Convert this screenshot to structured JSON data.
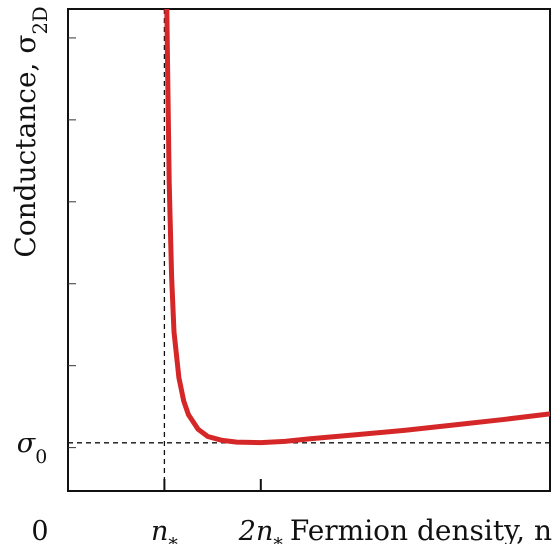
{
  "chart_data": {
    "type": "line",
    "title": "",
    "xlabel": "Fermion density, n",
    "ylabel": "Conductance, σ",
    "ylabel_subscript": "2D",
    "xlim": [
      0,
      10
    ],
    "ylim": [
      0,
      10
    ],
    "reference_lines": {
      "vertical_x": 2,
      "vertical_label": "n",
      "vertical_label_subscript": "*",
      "horizontal_y": 1,
      "horizontal_label": "σ",
      "horizontal_label_subscript": "0"
    },
    "x_ticks": [
      {
        "value": 0,
        "label": "0"
      },
      {
        "value": 2,
        "label": "n",
        "subscript": "*"
      },
      {
        "value": 4,
        "label": "2n",
        "subscript": "*"
      }
    ],
    "series": [
      {
        "x": [
          2.05,
          2.1,
          2.15,
          2.2,
          2.3,
          2.4,
          2.5,
          2.7,
          2.9,
          3.2,
          3.5,
          4.0,
          4.5,
          5.0,
          6.0,
          7.0,
          8.0,
          9.0,
          10.0
        ],
        "y": [
          10.0,
          6.4,
          4.45,
          3.3,
          2.35,
          1.87,
          1.58,
          1.28,
          1.13,
          1.05,
          1.015,
          1.005,
          1.03,
          1.08,
          1.17,
          1.26,
          1.37,
          1.48,
          1.6
        ]
      }
    ],
    "series_color": "#d62728",
    "grid": false,
    "legend": "none"
  }
}
